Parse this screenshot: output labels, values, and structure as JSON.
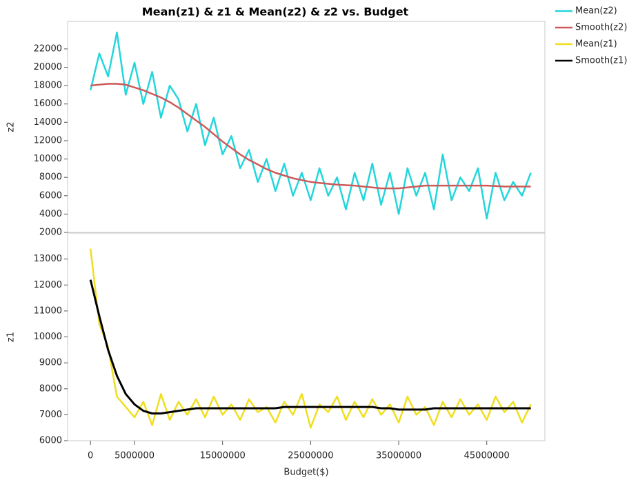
{
  "chart_data": [
    {
      "type": "line",
      "title": "Mean(z1) & z1 & Mean(z2) & z2 vs. Budget",
      "ylabel": "z2",
      "ylim": [
        2000,
        25000
      ],
      "yticks": [
        2000,
        4000,
        6000,
        8000,
        10000,
        12000,
        14000,
        16000,
        18000,
        20000,
        22000
      ],
      "series": [
        {
          "name": "Mean(z2)",
          "color": "#22d6dc",
          "width": 2.5,
          "values": [
            17500,
            21500,
            19000,
            23800,
            17000,
            20500,
            16000,
            19500,
            14500,
            18000,
            16500,
            13000,
            16000,
            11500,
            14500,
            10500,
            12500,
            9000,
            11000,
            7500,
            10000,
            6500,
            9500,
            6000,
            8500,
            5500,
            9000,
            6000,
            8000,
            4500,
            8500,
            5500,
            9500,
            5000,
            8500,
            4000,
            9000,
            6000,
            8500,
            4500,
            10500,
            5500,
            8000,
            6500,
            9000,
            3500,
            8500,
            5500,
            7500,
            6000,
            8500
          ]
        },
        {
          "name": "Smooth(z2)",
          "color": "#cd5a5a",
          "width": 2.5,
          "values": [
            18000,
            18100,
            18200,
            18200,
            18100,
            17800,
            17500,
            17100,
            16700,
            16200,
            15600,
            14900,
            14200,
            13500,
            12700,
            11900,
            11200,
            10500,
            9900,
            9400,
            8900,
            8500,
            8200,
            7900,
            7700,
            7500,
            7400,
            7300,
            7200,
            7150,
            7100,
            7000,
            6900,
            6800,
            6800,
            6800,
            6900,
            7000,
            7100,
            7100,
            7100,
            7100,
            7100,
            7100,
            7100,
            7100,
            7050,
            7000,
            7000,
            7000,
            7000
          ]
        }
      ]
    },
    {
      "type": "line",
      "ylabel": "z1",
      "xlabel": "Budget($)",
      "x": [
        0,
        1000000,
        2000000,
        3000000,
        4000000,
        5000000,
        6000000,
        7000000,
        8000000,
        9000000,
        10000000,
        11000000,
        12000000,
        13000000,
        14000000,
        15000000,
        16000000,
        17000000,
        18000000,
        19000000,
        20000000,
        21000000,
        22000000,
        23000000,
        24000000,
        25000000,
        26000000,
        27000000,
        28000000,
        29000000,
        30000000,
        31000000,
        32000000,
        33000000,
        34000000,
        35000000,
        36000000,
        37000000,
        38000000,
        39000000,
        40000000,
        41000000,
        42000000,
        43000000,
        44000000,
        45000000,
        46000000,
        47000000,
        48000000,
        49000000,
        50000000
      ],
      "xlim": [
        -2600000,
        51600000
      ],
      "xticks": [
        0,
        5000000,
        15000000,
        25000000,
        35000000,
        45000000
      ],
      "ylim": [
        6000,
        14000
      ],
      "yticks": [
        6000,
        7000,
        8000,
        9000,
        10000,
        11000,
        12000,
        13000
      ],
      "series": [
        {
          "name": "Mean(z1)",
          "color": "#f0de1e",
          "width": 2.5,
          "values": [
            13400,
            10500,
            9600,
            7700,
            7300,
            6900,
            7500,
            6600,
            7800,
            6800,
            7500,
            7000,
            7600,
            6900,
            7700,
            7000,
            7400,
            6800,
            7600,
            7100,
            7300,
            6700,
            7500,
            7000,
            7800,
            6500,
            7400,
            7100,
            7700,
            6800,
            7500,
            6900,
            7600,
            7000,
            7400,
            6700,
            7700,
            7000,
            7300,
            6600,
            7500,
            6900,
            7600,
            7000,
            7400,
            6800,
            7700,
            7100,
            7500,
            6700,
            7400
          ]
        },
        {
          "name": "Smooth(z1)",
          "color": "#000000",
          "width": 3,
          "values": [
            12200,
            10800,
            9500,
            8500,
            7800,
            7400,
            7150,
            7050,
            7050,
            7100,
            7150,
            7200,
            7250,
            7250,
            7250,
            7250,
            7250,
            7250,
            7250,
            7250,
            7250,
            7250,
            7300,
            7300,
            7300,
            7300,
            7300,
            7300,
            7300,
            7300,
            7300,
            7300,
            7300,
            7250,
            7250,
            7200,
            7200,
            7200,
            7200,
            7250,
            7250,
            7250,
            7250,
            7250,
            7250,
            7250,
            7250,
            7250,
            7250,
            7250,
            7250
          ]
        }
      ]
    }
  ]
}
